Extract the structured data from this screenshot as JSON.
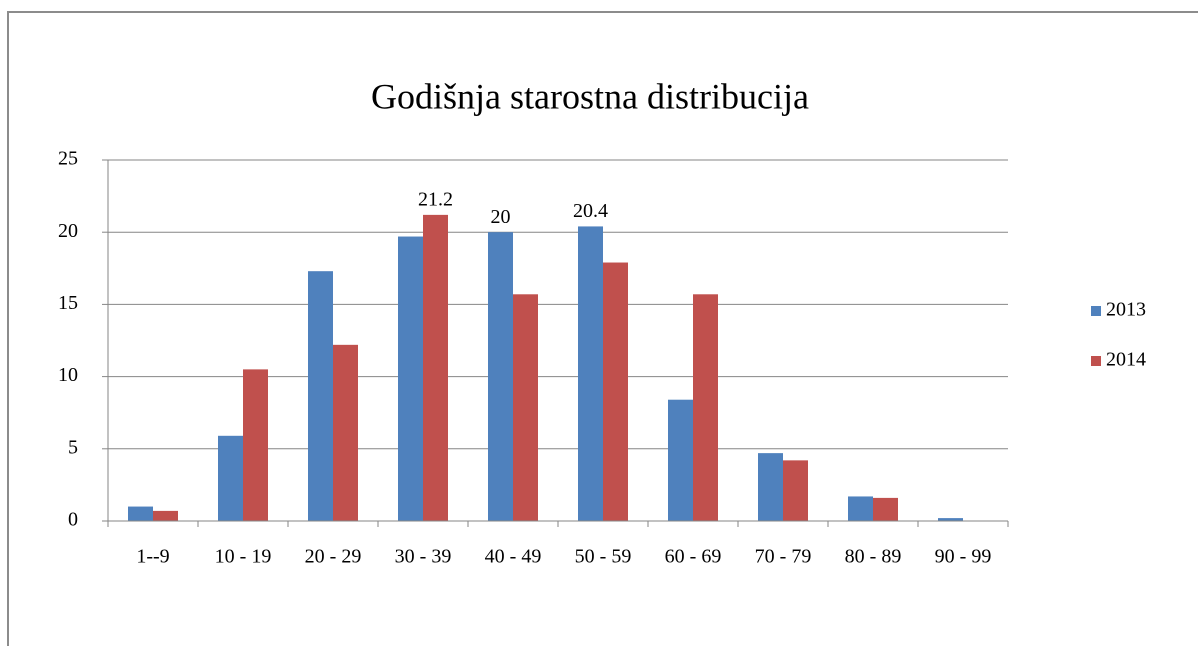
{
  "chart_data": {
    "type": "bar",
    "title": "Godišnja starostna distribucija",
    "categories": [
      "1--9",
      "10 - 19",
      "20 - 29",
      "30 - 39",
      "40 - 49",
      "50 - 59",
      "60 - 69",
      "70 - 79",
      "80 - 89",
      "90 - 99"
    ],
    "series": [
      {
        "name": "2013",
        "color": "#4f81bd",
        "values": [
          1.0,
          5.9,
          17.3,
          19.7,
          20,
          20.4,
          8.4,
          4.7,
          1.7,
          0.2
        ],
        "value_labels": [
          null,
          null,
          null,
          null,
          "20",
          "20.4",
          null,
          null,
          null,
          null
        ]
      },
      {
        "name": "2014",
        "color": "#c0504d",
        "values": [
          0.7,
          10.5,
          12.2,
          21.2,
          15.7,
          17.9,
          15.7,
          4.2,
          1.6,
          0
        ],
        "value_labels": [
          null,
          null,
          null,
          "21.2",
          null,
          null,
          null,
          null,
          null,
          null
        ]
      }
    ],
    "ylim": [
      0,
      25
    ],
    "yticks": [
      0,
      5,
      10,
      15,
      20,
      25
    ],
    "grid": true,
    "legend": "right"
  }
}
